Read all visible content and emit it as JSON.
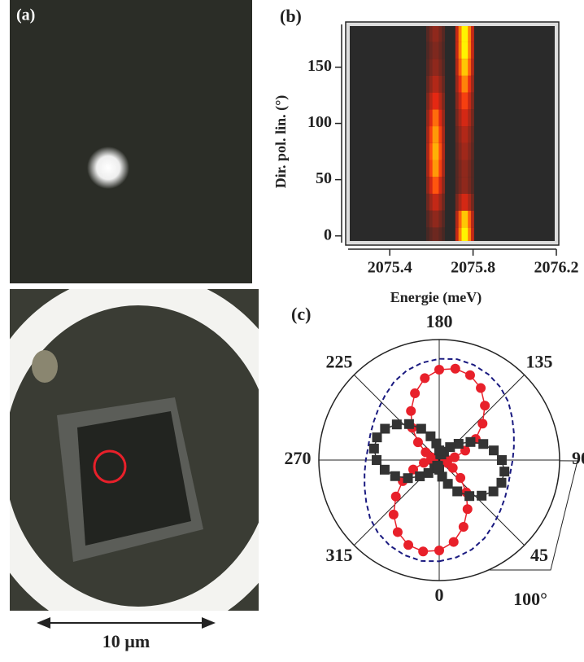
{
  "panel_a": {
    "label": "(a)",
    "scale_bar": "10 µm"
  },
  "chart_data": [
    {
      "type": "heatmap",
      "label": "(b)",
      "xlabel": "Energie (meV)",
      "ylabel": "Dir. pol. lin. (°)",
      "xlim": [
        2075.2,
        2076.2
      ],
      "xticks": [
        2075.4,
        2075.8,
        2076.2
      ],
      "ylim": [
        -6,
        188
      ],
      "yticks": [
        0,
        50,
        100,
        150
      ],
      "y": [
        0,
        15,
        30,
        45,
        60,
        75,
        90,
        105,
        120,
        135,
        150,
        165,
        180
      ],
      "peaks": [
        {
          "center": 2075.62,
          "intensity": [
            0.2,
            0.3,
            0.45,
            0.65,
            0.8,
            0.85,
            0.8,
            0.7,
            0.55,
            0.4,
            0.3,
            0.25,
            0.3
          ]
        },
        {
          "center": 2075.76,
          "intensity": [
            1,
            0.9,
            0.5,
            0.3,
            0.3,
            0.35,
            0.4,
            0.5,
            0.6,
            0.75,
            0.9,
            1,
            1
          ]
        }
      ]
    },
    {
      "type": "polar",
      "label": "(c)",
      "annotation": "100°",
      "rlim": [
        0,
        1
      ],
      "thetaticks": [
        0,
        45,
        90,
        135,
        180,
        225,
        270,
        315
      ],
      "theta": [
        0,
        10,
        20,
        30,
        40,
        50,
        60,
        70,
        80,
        90,
        100,
        110,
        120,
        130,
        140,
        150,
        160,
        170,
        180,
        190,
        200,
        210,
        220,
        230,
        240,
        250,
        260,
        270,
        280,
        290,
        300,
        310,
        320,
        330,
        340,
        350
      ],
      "series": [
        {
          "color": "#1a1a80",
          "style": "dashed",
          "values": [
            0.84,
            0.82,
            0.79,
            0.75,
            0.7,
            0.66,
            0.63,
            0.61,
            0.6,
            0.61,
            0.63,
            0.66,
            0.7,
            0.75,
            0.79,
            0.82,
            0.84,
            0.85,
            0.84,
            0.82,
            0.79,
            0.75,
            0.7,
            0.66,
            0.63,
            0.61,
            0.6,
            0.61,
            0.63,
            0.66,
            0.7,
            0.75,
            0.79,
            0.82,
            0.84,
            0.85
          ]
        },
        {
          "color": "#e8202a",
          "style": "circle",
          "values": [
            0.75,
            0.69,
            0.59,
            0.47,
            0.35,
            0.23,
            0.13,
            0.07,
            0.05,
            0.07,
            0.13,
            0.23,
            0.35,
            0.47,
            0.59,
            0.69,
            0.75,
            0.77,
            0.75,
            0.69,
            0.59,
            0.47,
            0.35,
            0.23,
            0.13,
            0.07,
            0.05,
            0.07,
            0.13,
            0.23,
            0.35,
            0.47,
            0.59,
            0.69,
            0.75,
            0.77
          ]
        },
        {
          "color": "#333333",
          "style": "square",
          "values": [
            0.08,
            0.14,
            0.21,
            0.3,
            0.39,
            0.46,
            0.52,
            0.55,
            0.55,
            0.52,
            0.46,
            0.39,
            0.3,
            0.21,
            0.14,
            0.08,
            0.05,
            0.05,
            0.08,
            0.14,
            0.21,
            0.3,
            0.39,
            0.46,
            0.52,
            0.55,
            0.55,
            0.52,
            0.46,
            0.39,
            0.3,
            0.21,
            0.14,
            0.08,
            0.05,
            0.05
          ]
        }
      ]
    }
  ]
}
